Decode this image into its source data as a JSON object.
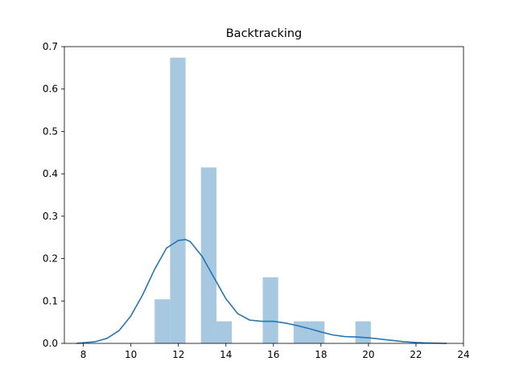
{
  "chart_data": {
    "type": "histogram",
    "title": "Backtracking",
    "xlabel": "",
    "ylabel": "",
    "xlim": [
      7.2,
      24.0
    ],
    "ylim": [
      0.0,
      0.7
    ],
    "xticks": [
      8,
      10,
      12,
      14,
      16,
      18,
      20,
      22,
      24
    ],
    "yticks": [
      0.0,
      0.1,
      0.2,
      0.3,
      0.4,
      0.5,
      0.6,
      0.7
    ],
    "bins": [
      {
        "x0": 11.0,
        "x1": 11.65,
        "value": 0.104
      },
      {
        "x0": 11.65,
        "x1": 12.3,
        "value": 0.674
      },
      {
        "x0": 12.95,
        "x1": 13.6,
        "value": 0.415
      },
      {
        "x0": 13.6,
        "x1": 14.25,
        "value": 0.052
      },
      {
        "x0": 15.55,
        "x1": 16.2,
        "value": 0.156
      },
      {
        "x0": 16.85,
        "x1": 17.5,
        "value": 0.052
      },
      {
        "x0": 17.5,
        "x1": 18.15,
        "value": 0.052
      },
      {
        "x0": 19.45,
        "x1": 20.1,
        "value": 0.052
      }
    ],
    "kde": {
      "x": [
        7.7,
        8.5,
        9.0,
        9.5,
        10.0,
        10.5,
        11.0,
        11.5,
        12.0,
        12.3,
        12.5,
        13.0,
        13.5,
        14.0,
        14.5,
        15.0,
        15.5,
        16.0,
        16.5,
        17.0,
        17.5,
        18.0,
        18.5,
        19.0,
        19.5,
        20.0,
        20.5,
        21.0,
        21.5,
        22.0,
        22.5,
        23.3
      ],
      "y": [
        0.0,
        0.004,
        0.012,
        0.03,
        0.065,
        0.115,
        0.175,
        0.225,
        0.243,
        0.245,
        0.24,
        0.205,
        0.155,
        0.105,
        0.07,
        0.055,
        0.052,
        0.052,
        0.048,
        0.042,
        0.035,
        0.027,
        0.02,
        0.016,
        0.015,
        0.013,
        0.01,
        0.007,
        0.004,
        0.002,
        0.001,
        0.0
      ]
    },
    "bar_color": "#a6c8e1",
    "line_color": "#2a75b3"
  }
}
